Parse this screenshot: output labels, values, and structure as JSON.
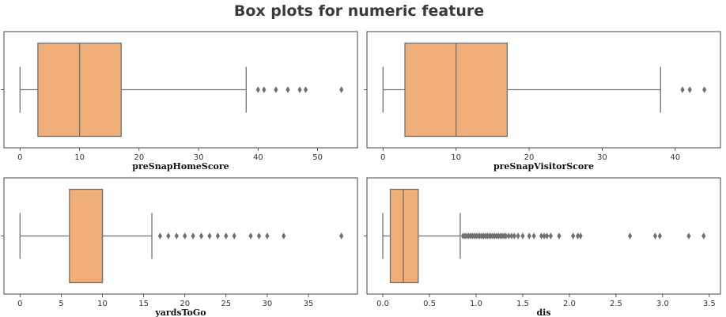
{
  "title": "Box plots for numeric feature",
  "colors": {
    "box_fill": "#f0af78",
    "line": "#707070",
    "outlier": "#707070",
    "frame": "#333333"
  },
  "chart_data": [
    {
      "type": "box",
      "xlabel": "preSnapHomeScore",
      "xlim": [
        -2.7,
        56.7
      ],
      "ticks": [
        0,
        10,
        20,
        30,
        40,
        50
      ],
      "tick_labels": [
        "0",
        "10",
        "20",
        "30",
        "40",
        "50"
      ],
      "box": {
        "whisker_low": 0,
        "q1": 3,
        "median": 10,
        "q3": 17,
        "whisker_high": 38
      },
      "outliers": [
        40,
        41,
        43,
        45,
        47,
        48,
        54
      ]
    },
    {
      "type": "box",
      "xlabel": "preSnapVisitorScore",
      "xlim": [
        -2.2,
        46.2
      ],
      "ticks": [
        0,
        10,
        20,
        30,
        40
      ],
      "tick_labels": [
        "0",
        "10",
        "20",
        "30",
        "40"
      ],
      "box": {
        "whisker_low": 0,
        "q1": 3,
        "median": 10,
        "q3": 17,
        "whisker_high": 38
      },
      "outliers": [
        41,
        42,
        44
      ]
    },
    {
      "type": "box",
      "xlabel": "yardsToGo",
      "xlim": [
        -1.95,
        40.95
      ],
      "ticks": [
        0,
        5,
        10,
        15,
        20,
        25,
        30,
        35
      ],
      "tick_labels": [
        "0",
        "5",
        "10",
        "15",
        "20",
        "25",
        "30",
        "35"
      ],
      "box": {
        "whisker_low": 0,
        "q1": 6,
        "median": 10,
        "q3": 10,
        "whisker_high": 16
      },
      "outliers": [
        17,
        18,
        19,
        20,
        21,
        22,
        23,
        24,
        25,
        26,
        28,
        29,
        30,
        32,
        39
      ]
    },
    {
      "type": "box",
      "xlabel": "dis",
      "xlim": [
        -0.17,
        3.62
      ],
      "ticks": [
        0.0,
        0.5,
        1.0,
        1.5,
        2.0,
        2.5,
        3.0,
        3.5
      ],
      "tick_labels": [
        "0.0",
        "0.5",
        "1.0",
        "1.5",
        "2.0",
        "2.5",
        "3.0",
        "3.5"
      ],
      "box": {
        "whisker_low": 0,
        "q1": 0.08,
        "median": 0.22,
        "q3": 0.38,
        "whisker_high": 0.83
      },
      "outliers": [
        0.86,
        0.88,
        0.9,
        0.92,
        0.94,
        0.96,
        0.98,
        1.0,
        1.02,
        1.04,
        1.06,
        1.08,
        1.1,
        1.12,
        1.14,
        1.16,
        1.18,
        1.2,
        1.22,
        1.24,
        1.26,
        1.28,
        1.3,
        1.32,
        1.35,
        1.38,
        1.41,
        1.45,
        1.5,
        1.57,
        1.62,
        1.7,
        1.73,
        1.76,
        1.8,
        1.89,
        2.04,
        2.09,
        2.12,
        2.65,
        2.92,
        2.97,
        3.28,
        3.44
      ]
    }
  ]
}
